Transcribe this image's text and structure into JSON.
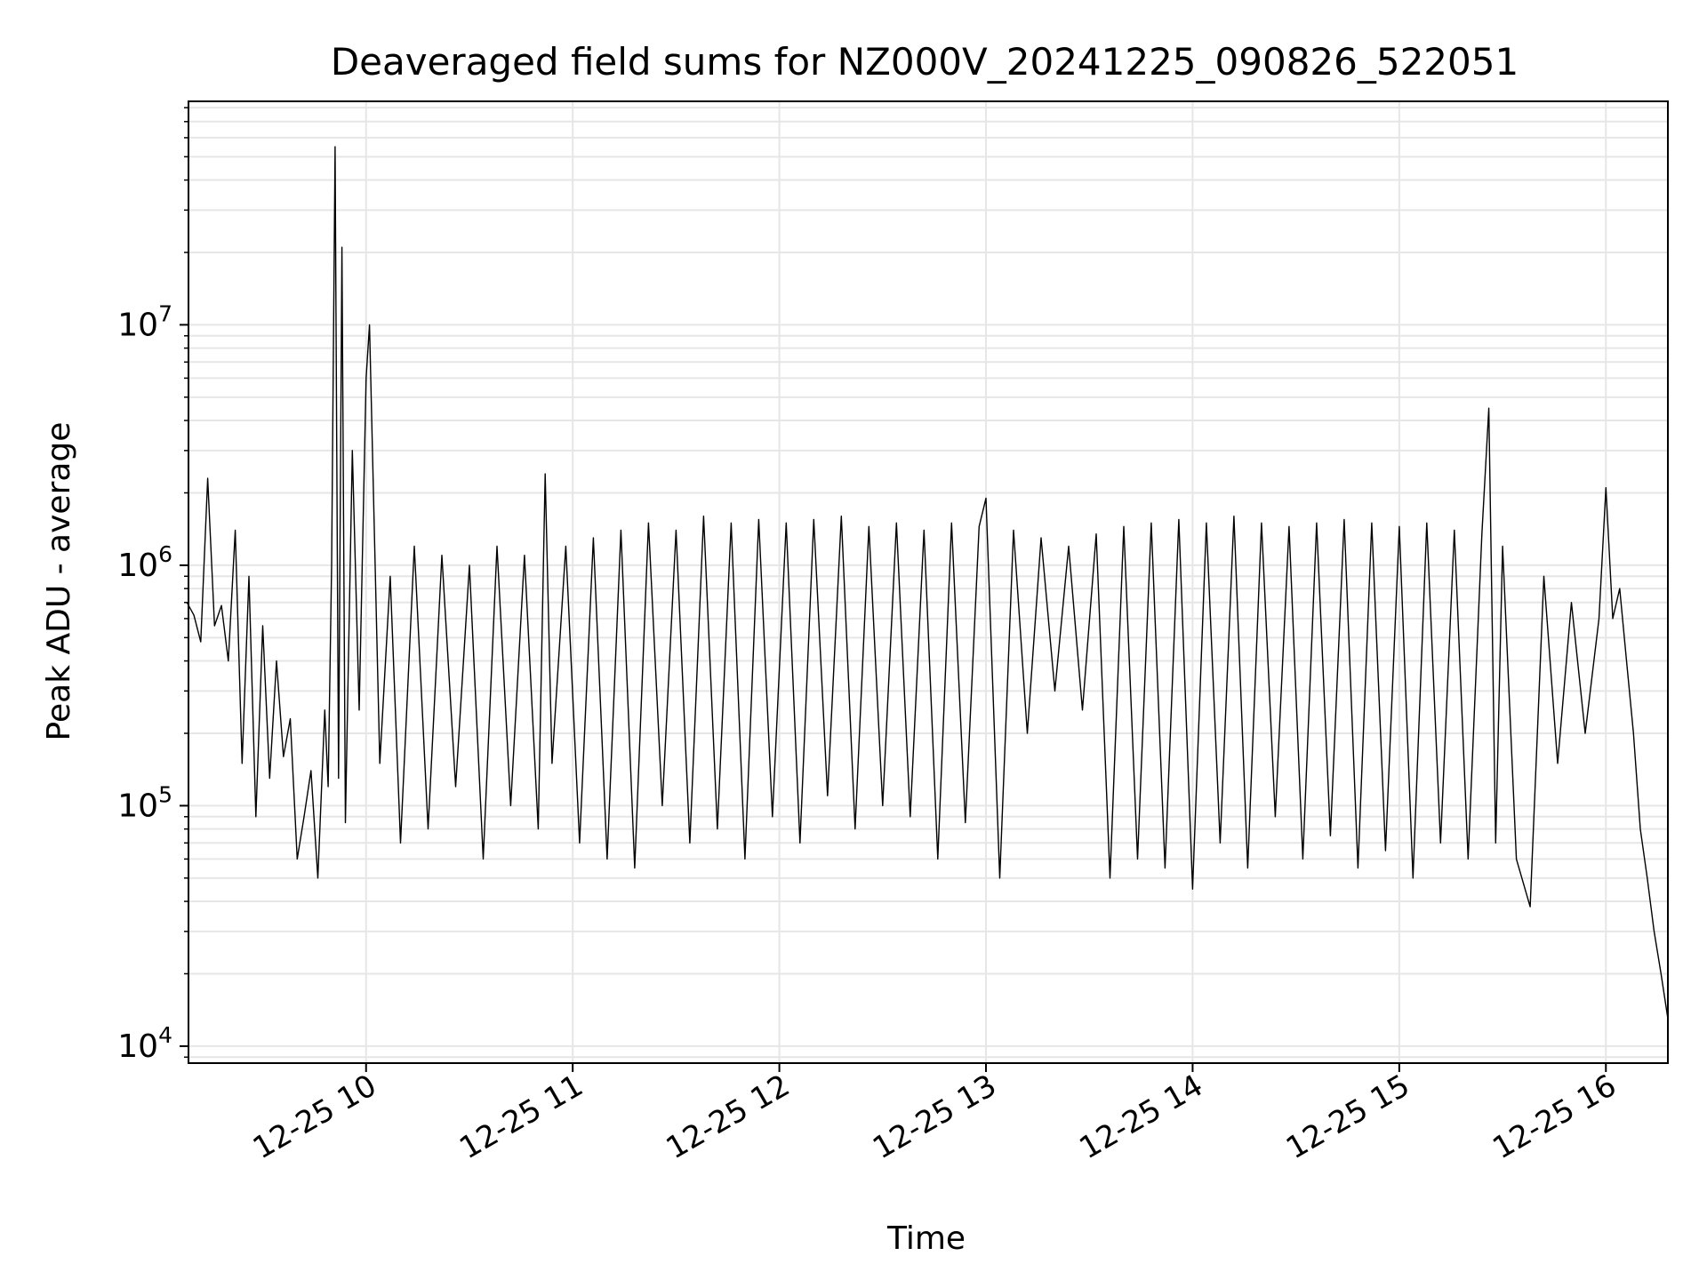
{
  "chart_data": {
    "type": "line",
    "title": "Deaveraged field sums for NZ000V_20241225_090826_522051",
    "xlabel": "Time",
    "ylabel": "Peak ADU - average",
    "yscale": "log",
    "ylim": [
      8500,
      85000000
    ],
    "xlim": [
      "2024-12-25 09:08:26",
      "2024-12-25 16:18:00"
    ],
    "grid": true,
    "line_color": "#000000",
    "x_ticks": [
      {
        "t": "2024-12-25 10:00",
        "label": "12-25 10"
      },
      {
        "t": "2024-12-25 11:00",
        "label": "12-25 11"
      },
      {
        "t": "2024-12-25 12:00",
        "label": "12-25 12"
      },
      {
        "t": "2024-12-25 13:00",
        "label": "12-25 13"
      },
      {
        "t": "2024-12-25 14:00",
        "label": "12-25 14"
      },
      {
        "t": "2024-12-25 15:00",
        "label": "12-25 15"
      },
      {
        "t": "2024-12-25 16:00",
        "label": "12-25 16"
      }
    ],
    "y_ticks": [
      {
        "value": 10000,
        "base": "10",
        "exp": "4"
      },
      {
        "value": 100000,
        "base": "10",
        "exp": "5"
      },
      {
        "value": 1000000,
        "base": "10",
        "exp": "6"
      },
      {
        "value": 10000000,
        "base": "10",
        "exp": "7"
      }
    ],
    "series": [
      {
        "x": [
          "2024-12-25 09:08",
          "2024-12-25 09:10",
          "2024-12-25 09:12",
          "2024-12-25 09:14",
          "2024-12-25 09:16",
          "2024-12-25 09:18",
          "2024-12-25 09:20",
          "2024-12-25 09:22",
          "2024-12-25 09:24",
          "2024-12-25 09:26",
          "2024-12-25 09:28",
          "2024-12-25 09:30",
          "2024-12-25 09:32",
          "2024-12-25 09:34",
          "2024-12-25 09:36",
          "2024-12-25 09:38",
          "2024-12-25 09:40",
          "2024-12-25 09:42",
          "2024-12-25 09:44",
          "2024-12-25 09:46",
          "2024-12-25 09:48",
          "2024-12-25 09:49",
          "2024-12-25 09:50",
          "2024-12-25 09:51",
          "2024-12-25 09:52",
          "2024-12-25 09:53",
          "2024-12-25 09:54",
          "2024-12-25 09:56",
          "2024-12-25 09:58",
          "2024-12-25 10:00",
          "2024-12-25 10:01",
          "2024-12-25 10:04",
          "2024-12-25 10:07",
          "2024-12-25 10:10",
          "2024-12-25 10:14",
          "2024-12-25 10:18",
          "2024-12-25 10:22",
          "2024-12-25 10:26",
          "2024-12-25 10:30",
          "2024-12-25 10:34",
          "2024-12-25 10:38",
          "2024-12-25 10:42",
          "2024-12-25 10:46",
          "2024-12-25 10:50",
          "2024-12-25 10:52",
          "2024-12-25 10:54",
          "2024-12-25 10:58",
          "2024-12-25 11:02",
          "2024-12-25 11:06",
          "2024-12-25 11:10",
          "2024-12-25 11:14",
          "2024-12-25 11:18",
          "2024-12-25 11:22",
          "2024-12-25 11:26",
          "2024-12-25 11:30",
          "2024-12-25 11:34",
          "2024-12-25 11:38",
          "2024-12-25 11:42",
          "2024-12-25 11:46",
          "2024-12-25 11:50",
          "2024-12-25 11:54",
          "2024-12-25 11:58",
          "2024-12-25 12:02",
          "2024-12-25 12:06",
          "2024-12-25 12:10",
          "2024-12-25 12:14",
          "2024-12-25 12:18",
          "2024-12-25 12:22",
          "2024-12-25 12:26",
          "2024-12-25 12:30",
          "2024-12-25 12:34",
          "2024-12-25 12:38",
          "2024-12-25 12:42",
          "2024-12-25 12:46",
          "2024-12-25 12:50",
          "2024-12-25 12:54",
          "2024-12-25 12:58",
          "2024-12-25 13:00",
          "2024-12-25 13:04",
          "2024-12-25 13:08",
          "2024-12-25 13:12",
          "2024-12-25 13:16",
          "2024-12-25 13:20",
          "2024-12-25 13:24",
          "2024-12-25 13:28",
          "2024-12-25 13:32",
          "2024-12-25 13:36",
          "2024-12-25 13:40",
          "2024-12-25 13:44",
          "2024-12-25 13:48",
          "2024-12-25 13:52",
          "2024-12-25 13:56",
          "2024-12-25 14:00",
          "2024-12-25 14:04",
          "2024-12-25 14:08",
          "2024-12-25 14:12",
          "2024-12-25 14:16",
          "2024-12-25 14:20",
          "2024-12-25 14:24",
          "2024-12-25 14:28",
          "2024-12-25 14:32",
          "2024-12-25 14:36",
          "2024-12-25 14:40",
          "2024-12-25 14:44",
          "2024-12-25 14:48",
          "2024-12-25 14:52",
          "2024-12-25 14:56",
          "2024-12-25 15:00",
          "2024-12-25 15:04",
          "2024-12-25 15:08",
          "2024-12-25 15:12",
          "2024-12-25 15:16",
          "2024-12-25 15:20",
          "2024-12-25 15:24",
          "2024-12-25 15:26",
          "2024-12-25 15:28",
          "2024-12-25 15:30",
          "2024-12-25 15:34",
          "2024-12-25 15:38",
          "2024-12-25 15:42",
          "2024-12-25 15:46",
          "2024-12-25 15:50",
          "2024-12-25 15:54",
          "2024-12-25 15:58",
          "2024-12-25 16:00",
          "2024-12-25 16:02",
          "2024-12-25 16:04",
          "2024-12-25 16:06",
          "2024-12-25 16:08",
          "2024-12-25 16:10",
          "2024-12-25 16:12",
          "2024-12-25 16:14",
          "2024-12-25 16:16",
          "2024-12-25 16:18"
        ],
        "y": [
          700000,
          620000,
          480000,
          2300000,
          560000,
          680000,
          400000,
          1400000,
          150000,
          900000,
          90000,
          560000,
          130000,
          400000,
          160000,
          230000,
          60000,
          90000,
          140000,
          50000,
          250000,
          120000,
          1000000,
          55000000,
          130000,
          21000000,
          85000,
          3000000,
          250000,
          6000000,
          10000000,
          150000,
          900000,
          70000,
          1200000,
          80000,
          1100000,
          120000,
          1000000,
          60000,
          1200000,
          100000,
          1100000,
          80000,
          2400000,
          150000,
          1200000,
          70000,
          1300000,
          60000,
          1400000,
          55000,
          1500000,
          100000,
          1400000,
          70000,
          1600000,
          80000,
          1500000,
          60000,
          1550000,
          90000,
          1500000,
          70000,
          1550000,
          110000,
          1600000,
          80000,
          1450000,
          100000,
          1500000,
          90000,
          1400000,
          60000,
          1500000,
          85000,
          1450000,
          1900000,
          50000,
          1400000,
          200000,
          1300000,
          300000,
          1200000,
          250000,
          1350000,
          50000,
          1450000,
          60000,
          1500000,
          55000,
          1550000,
          45000,
          1500000,
          70000,
          1600000,
          55000,
          1500000,
          90000,
          1450000,
          60000,
          1500000,
          75000,
          1550000,
          55000,
          1500000,
          65000,
          1450000,
          50000,
          1500000,
          70000,
          1400000,
          60000,
          1350000,
          4500000,
          70000,
          1200000,
          60000,
          38000,
          900000,
          150000,
          700000,
          200000,
          600000,
          2100000,
          600000,
          800000,
          400000,
          200000,
          80000,
          50000,
          30000,
          20000,
          13000
        ]
      }
    ]
  }
}
